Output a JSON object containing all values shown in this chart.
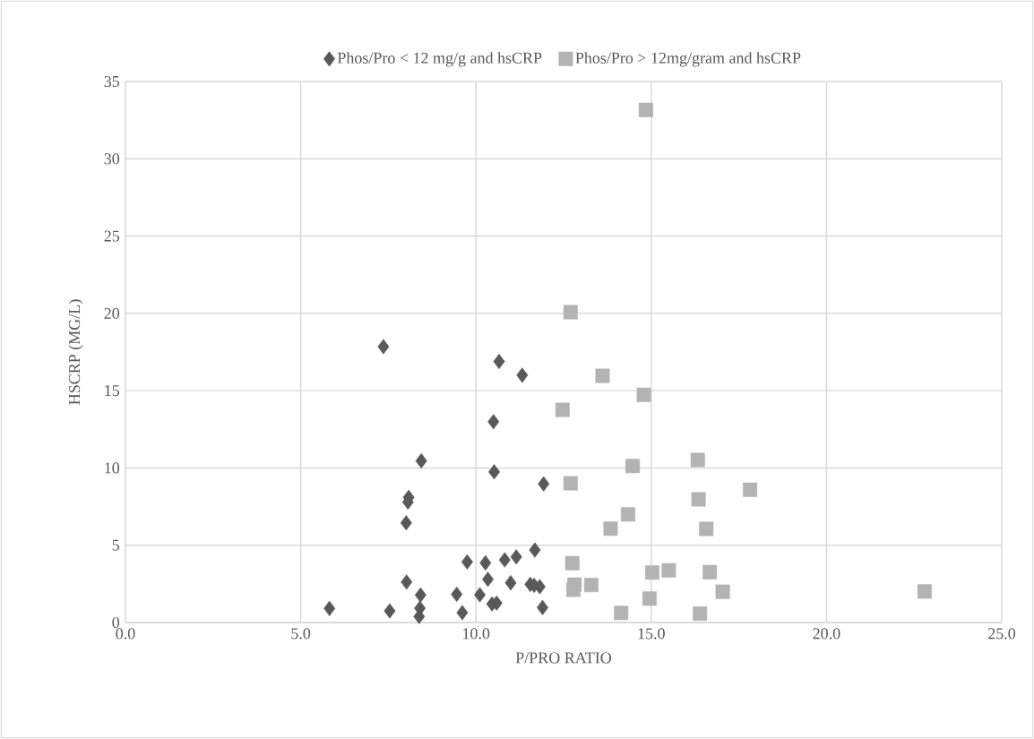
{
  "chart_data": {
    "type": "scatter",
    "xlabel": "P/PRO RATIO",
    "ylabel": "HSCRP (MG/L)",
    "xlim": [
      0,
      25
    ],
    "ylim": [
      0,
      35
    ],
    "xticks": [
      {
        "value": 0,
        "label": "0.0"
      },
      {
        "value": 5,
        "label": "5.0"
      },
      {
        "value": 10,
        "label": "10.0"
      },
      {
        "value": 15,
        "label": "15.0"
      },
      {
        "value": 20,
        "label": "20.0"
      },
      {
        "value": 25,
        "label": "25.0"
      }
    ],
    "yticks": [
      0,
      5,
      10,
      15,
      20,
      25,
      30,
      35
    ],
    "grid": true,
    "legend": "top",
    "series": [
      {
        "name": "Phos/Pro < 12 mg/g and hsCRP",
        "color": "#595959",
        "marker": "diamond",
        "x": [
          7.36,
          10.66,
          11.32,
          10.5,
          8.44,
          10.52,
          11.93,
          8.08,
          8.06,
          8.01,
          11.68,
          9.75,
          10.27,
          10.82,
          11.15,
          8.02,
          10.34,
          10.99,
          11.55,
          11.66,
          11.82,
          8.42,
          9.45,
          10.11,
          10.46,
          10.59,
          5.82,
          7.54,
          8.4,
          8.38,
          9.61,
          11.9
        ],
        "values": [
          17.85,
          16.89,
          16.0,
          12.99,
          10.46,
          9.75,
          8.97,
          8.1,
          7.8,
          6.45,
          4.69,
          3.92,
          3.86,
          4.05,
          4.25,
          2.62,
          2.8,
          2.57,
          2.47,
          2.41,
          2.32,
          1.78,
          1.83,
          1.79,
          1.2,
          1.26,
          0.91,
          0.75,
          0.93,
          0.39,
          0.64,
          0.97
        ]
      },
      {
        "name": "Phos/Pro > 12mg/gram and hsCRP",
        "color": "#b3b3b3",
        "marker": "square",
        "x": [
          14.85,
          12.7,
          13.61,
          14.79,
          12.47,
          16.33,
          14.47,
          12.7,
          17.82,
          16.35,
          14.34,
          13.84,
          16.57,
          12.75,
          15.03,
          15.5,
          16.67,
          12.78,
          13.29,
          12.81,
          17.04,
          14.95,
          14.14,
          16.39,
          22.8
        ],
        "values": [
          33.16,
          20.08,
          15.96,
          14.73,
          13.76,
          10.52,
          10.13,
          9.01,
          8.59,
          7.97,
          7.0,
          6.08,
          6.06,
          3.84,
          3.24,
          3.38,
          3.26,
          2.12,
          2.43,
          2.45,
          1.99,
          1.55,
          0.62,
          0.58,
          2.01
        ]
      }
    ]
  }
}
